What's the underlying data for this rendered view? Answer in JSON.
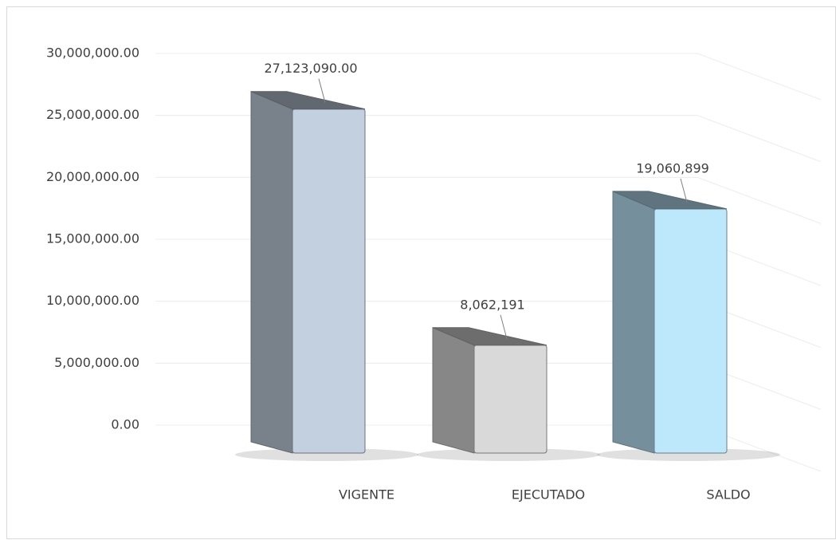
{
  "chart_data": {
    "type": "bar3d",
    "categories": [
      "VIGENTE",
      "EJECUTADO",
      "SALDO"
    ],
    "values": [
      27123090,
      8062191,
      19060899
    ],
    "value_labels": [
      "27,123,090.00",
      "8,062,191",
      "19,060,899"
    ],
    "colors": [
      "#c3d0df",
      "#d9d9d9",
      "#bde8fb"
    ],
    "ylim": [
      0,
      30000000
    ],
    "yticks": [
      {
        "value": 0,
        "label": "0.00"
      },
      {
        "value": 5000000,
        "label": "5,000,000.00"
      },
      {
        "value": 10000000,
        "label": "10,000,000.00"
      },
      {
        "value": 15000000,
        "label": "15,000,000.00"
      },
      {
        "value": 20000000,
        "label": "20,000,000.00"
      },
      {
        "value": 25000000,
        "label": "25,000,000.00"
      },
      {
        "value": 30000000,
        "label": "30,000,000.00"
      }
    ],
    "grid": true
  }
}
